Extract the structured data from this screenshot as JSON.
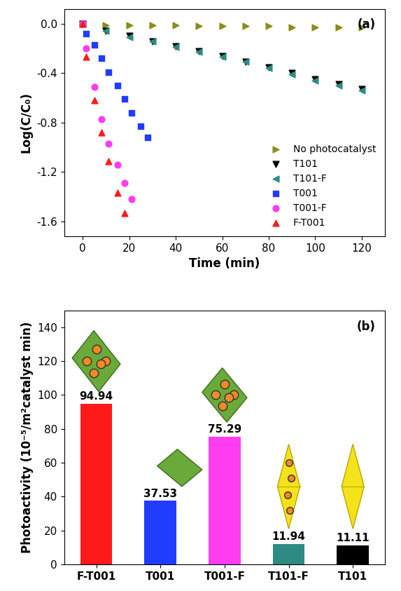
{
  "chart_data": [
    {
      "type": "scatter",
      "annotations": [
        "(a)"
      ],
      "x_label": "Time (min)",
      "y_label": "Log(C/C₀)",
      "xlim": [
        -8,
        130
      ],
      "xticks": [
        0,
        20,
        40,
        60,
        80,
        100,
        120
      ],
      "ylim": [
        -1.72,
        0.12
      ],
      "yticks": [
        {
          "value": 0,
          "label": "0.0"
        },
        -0.4,
        -0.8,
        -1.2,
        -1.6
      ],
      "grid": false,
      "legend": "lower right",
      "series": [
        {
          "name": "No photocatalyst",
          "color": "#8c8c1a",
          "marker": "triangle_right",
          "x": [
            0,
            10,
            20,
            30,
            40,
            50,
            60,
            70,
            80,
            90,
            100,
            110,
            120
          ],
          "values": [
            0,
            -0.01,
            -0.01,
            -0.01,
            -0.01,
            -0.02,
            -0.02,
            -0.02,
            -0.02,
            -0.03,
            -0.03,
            -0.03,
            -0.03
          ]
        },
        {
          "name": "T101",
          "color": "#000000",
          "marker": "triangle_down",
          "x": [
            0,
            10,
            20,
            30,
            40,
            50,
            60,
            70,
            80,
            90,
            100,
            110,
            120
          ],
          "values": [
            0,
            -0.06,
            -0.1,
            -0.14,
            -0.18,
            -0.22,
            -0.26,
            -0.31,
            -0.35,
            -0.4,
            -0.45,
            -0.49,
            -0.53
          ]
        },
        {
          "name": "T101-F",
          "color": "#2e8b84",
          "marker": "triangle_left",
          "x": [
            0,
            10,
            20,
            30,
            40,
            50,
            60,
            70,
            80,
            90,
            100,
            110,
            120
          ],
          "values": [
            0,
            -0.06,
            -0.11,
            -0.14,
            -0.19,
            -0.23,
            -0.27,
            -0.31,
            -0.36,
            -0.41,
            -0.46,
            -0.5,
            -0.54
          ]
        },
        {
          "name": "T001",
          "color": "#1f3cff",
          "marker": "square",
          "x": [
            0,
            1.5,
            5,
            8,
            11,
            15,
            18,
            21,
            25,
            28
          ],
          "values": [
            0,
            -0.08,
            -0.17,
            -0.28,
            -0.39,
            -0.5,
            -0.61,
            -0.72,
            -0.83,
            -0.92
          ]
        },
        {
          "name": "T001-F",
          "color": "#ff3cf0",
          "marker": "circle",
          "x": [
            0,
            1.5,
            5,
            8,
            11,
            15,
            18,
            21
          ],
          "values": [
            0,
            -0.2,
            -0.51,
            -0.77,
            -0.97,
            -1.14,
            -1.29,
            -1.42
          ]
        },
        {
          "name": "F-T001",
          "color": "#ff1a1a",
          "marker": "triangle_up",
          "x": [
            0,
            1.5,
            5,
            8,
            11,
            15,
            18
          ],
          "values": [
            0,
            -0.27,
            -0.62,
            -0.88,
            -1.11,
            -1.37,
            -1.53
          ]
        }
      ]
    },
    {
      "type": "bar",
      "annotations": [
        "(b)"
      ],
      "y_label": "Photoactivity (10⁻⁵/m²catalyst min)",
      "categories": [
        "F-T001",
        "T001",
        "T001-F",
        "T101-F",
        "T101"
      ],
      "values": [
        94.94,
        37.53,
        75.29,
        11.94,
        11.11
      ],
      "colors": [
        "#ff1a1a",
        "#1f3cff",
        "#ff3cf0",
        "#2e8b84",
        "#000000"
      ],
      "ylim": [
        0,
        150
      ],
      "yticks": [
        0,
        20,
        40,
        60,
        80,
        100,
        120,
        140
      ],
      "grid": false,
      "data_labels": true
    }
  ]
}
